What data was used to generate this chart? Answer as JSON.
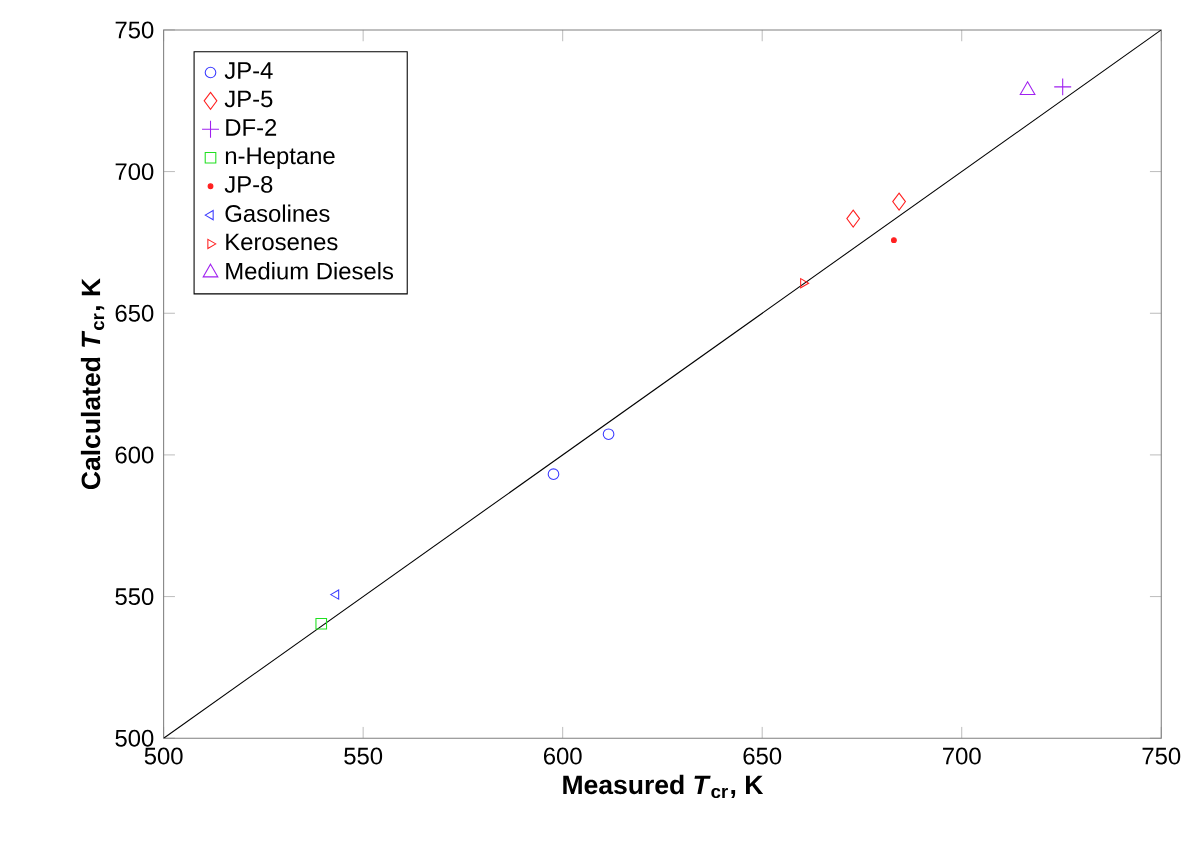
{
  "chart_data": {
    "type": "scatter",
    "xlabel": "Measured *T*$_{cr}$, K",
    "ylabel": "Calculated *T*$_{cr}$, K",
    "xlim": [
      500,
      750
    ],
    "ylim": [
      500,
      750
    ],
    "xticks": [
      500,
      550,
      600,
      650,
      700,
      750
    ],
    "yticks": [
      500,
      550,
      600,
      650,
      700,
      750
    ],
    "grid": false,
    "legend": "top left",
    "series": [
      {
        "name": "JP-4",
        "color": "#3b3bff",
        "marker": "circle",
        "x": [
          597.7,
          611.5
        ],
        "values": [
          593.2,
          607.3
        ]
      },
      {
        "name": "JP-5",
        "color": "#ff2020",
        "marker": "diamond",
        "x": [
          672.8,
          684.3
        ],
        "values": [
          683.4,
          689.4
        ]
      },
      {
        "name": "DF-2",
        "color": "#a020f0",
        "marker": "cross",
        "x": [
          725.3
        ],
        "values": [
          729.9
        ]
      },
      {
        "name": "n-Heptane",
        "color": "#20e020",
        "marker": "square",
        "x": [
          539.5
        ],
        "values": [
          540.4
        ]
      },
      {
        "name": "JP-8",
        "color": "#ff2020",
        "marker": "point",
        "x": [
          683
        ],
        "values": [
          675.8
        ]
      },
      {
        "name": "Gasolines",
        "color": "#3b3bff",
        "marker": "triangle-left",
        "x": [
          543.2
        ],
        "values": [
          550.7
        ]
      },
      {
        "name": "Kerosenes",
        "color": "#ff2020",
        "marker": "triangle-right",
        "x": [
          660.3
        ],
        "values": [
          660.6
        ]
      },
      {
        "name": "Medium Diesels",
        "color": "#a020f0",
        "marker": "triangle",
        "x": [
          716.5
        ],
        "values": [
          728.7
        ]
      },
      {
        "type": "line",
        "color": "#000000",
        "marker": "none",
        "x": [
          500,
          750
        ],
        "values": [
          500,
          750
        ]
      }
    ]
  }
}
